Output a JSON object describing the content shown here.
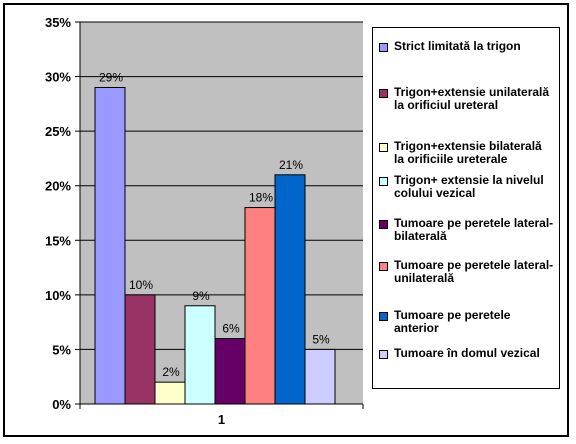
{
  "chart_data": {
    "type": "bar",
    "categories": [
      "1"
    ],
    "ylim": [
      0,
      35
    ],
    "yticks": [
      0,
      5,
      10,
      15,
      20,
      25,
      30,
      35
    ],
    "ytick_format": "{v}%",
    "grid": true,
    "legend_position": "right",
    "series": [
      {
        "name": "Strict limitată la trigon",
        "value": 29,
        "label": "29%",
        "color": "#9999ff"
      },
      {
        "name": "Trigon+extensie unilaterală la orificiul ureteral",
        "value": 10,
        "label": "10%",
        "color": "#993366"
      },
      {
        "name": "Trigon+extensie bilaterală la orificiile ureterale",
        "value": 2,
        "label": "2%",
        "color": "#ffffcc"
      },
      {
        "name": "Trigon+ extensie la nivelul colului vezical",
        "value": 9,
        "label": "9%",
        "color": "#ccffff"
      },
      {
        "name": "Tumoare pe peretele lateral-bilaterală",
        "value": 6,
        "label": "6%",
        "color": "#660066"
      },
      {
        "name": "Tumoare pe peretele lateral-unilaterală",
        "value": 18,
        "label": "18%",
        "color": "#ff8080"
      },
      {
        "name": "Tumoare pe peretele anterior",
        "value": 21,
        "label": "21%",
        "color": "#0066cc"
      },
      {
        "name": "Tumoare în domul vezical",
        "value": 5,
        "label": "5%",
        "color": "#ccccff"
      }
    ],
    "plot_background": "#c0c0c0"
  }
}
